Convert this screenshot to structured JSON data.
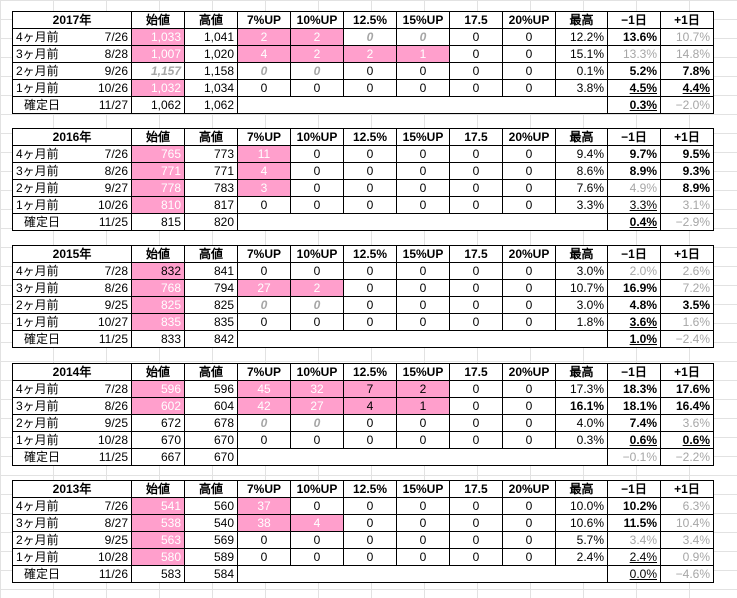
{
  "headers": [
    "始値",
    "高値",
    "7%UP",
    "10%UP",
    "12.5%",
    "15%UP",
    "17.5",
    "20%UP",
    "最高",
    "−1日",
    "+1日"
  ],
  "blocks": [
    {
      "year": "2017年",
      "rows": [
        {
          "label": "4ヶ月前",
          "date": "7/26",
          "open": "1,033",
          "high": "1,041",
          "u7": "2",
          "u10": "2",
          "u125": "0",
          "u15": "0",
          "u175": "0",
          "u20": "0",
          "max": "12.2%",
          "m1": "13.6%",
          "p1": "10.7%",
          "s": {
            "open": "pink",
            "u7": "pink",
            "u10": "pink",
            "u125": "zi",
            "u15": "zi",
            "m1": "bold",
            "p1": "gray"
          }
        },
        {
          "label": "3ヶ月前",
          "date": "8/28",
          "open": "1,007",
          "high": "1,020",
          "u7": "4",
          "u10": "2",
          "u125": "2",
          "u15": "1",
          "u175": "0",
          "u20": "0",
          "max": "15.1%",
          "m1": "13.3%",
          "p1": "14.8%",
          "s": {
            "open": "pink",
            "u7": "pink",
            "u10": "pink",
            "u125": "pink",
            "u15": "pink",
            "m1": "gray",
            "p1": "gray"
          }
        },
        {
          "label": "2ヶ月前",
          "date": "9/26",
          "open": "1,157",
          "high": "1,158",
          "u7": "0",
          "u10": "0",
          "u125": "0",
          "u15": "0",
          "u175": "0",
          "u20": "0",
          "max": "0.1%",
          "m1": "5.2%",
          "p1": "7.8%",
          "s": {
            "open": "zi",
            "u7": "zi",
            "u10": "zi",
            "m1": "bold",
            "p1": "bold"
          }
        },
        {
          "label": "1ヶ月前",
          "date": "10/26",
          "open": "1,032",
          "high": "1,034",
          "u7": "0",
          "u10": "0",
          "u125": "0",
          "u15": "0",
          "u175": "0",
          "u20": "0",
          "max": "3.8%",
          "m1": "4.5%",
          "p1": "4.4%",
          "s": {
            "open": "pink",
            "m1": "boldul",
            "p1": "boldul"
          }
        }
      ],
      "final": {
        "label": "確定日",
        "date": "11/27",
        "open": "1,062",
        "high": "1,062",
        "m1": "0.3%",
        "p1": "−2.0%",
        "s": {
          "m1": "boldul",
          "p1": "gray"
        }
      }
    },
    {
      "year": "2016年",
      "rows": [
        {
          "label": "4ヶ月前",
          "date": "7/26",
          "open": "765",
          "high": "773",
          "u7": "11",
          "u10": "0",
          "u125": "0",
          "u15": "0",
          "u175": "0",
          "u20": "0",
          "max": "9.4%",
          "m1": "9.7%",
          "p1": "9.5%",
          "s": {
            "open": "pink",
            "u7": "pink",
            "m1": "bold",
            "p1": "bold"
          }
        },
        {
          "label": "3ヶ月前",
          "date": "8/26",
          "open": "771",
          "high": "771",
          "u7": "4",
          "u10": "0",
          "u125": "0",
          "u15": "0",
          "u175": "0",
          "u20": "0",
          "max": "8.6%",
          "m1": "8.9%",
          "p1": "9.3%",
          "s": {
            "open": "pink",
            "u7": "pink",
            "m1": "bold",
            "p1": "bold"
          }
        },
        {
          "label": "2ヶ月前",
          "date": "9/27",
          "open": "778",
          "high": "783",
          "u7": "3",
          "u10": "0",
          "u125": "0",
          "u15": "0",
          "u175": "0",
          "u20": "0",
          "max": "7.6%",
          "m1": "4.9%",
          "p1": "8.9%",
          "s": {
            "open": "pink",
            "u7": "pink",
            "m1": "gray",
            "p1": "bold"
          }
        },
        {
          "label": "1ヶ月前",
          "date": "10/26",
          "open": "810",
          "high": "817",
          "u7": "0",
          "u10": "0",
          "u125": "0",
          "u15": "0",
          "u175": "0",
          "u20": "0",
          "max": "3.3%",
          "m1": "3.3%",
          "p1": "3.1%",
          "s": {
            "open": "pink",
            "m1": "ul",
            "p1": "gray"
          }
        }
      ],
      "final": {
        "label": "確定日",
        "date": "11/25",
        "open": "815",
        "high": "820",
        "m1": "0.4%",
        "p1": "−2.9%",
        "s": {
          "m1": "boldul",
          "p1": "gray"
        }
      }
    },
    {
      "year": "2015年",
      "rows": [
        {
          "label": "4ヶ月前",
          "date": "7/28",
          "open": "832",
          "high": "841",
          "u7": "0",
          "u10": "0",
          "u125": "0",
          "u15": "0",
          "u175": "0",
          "u20": "0",
          "max": "3.0%",
          "m1": "2.0%",
          "p1": "2.6%",
          "s": {
            "open": "pinkdark",
            "m1": "gray",
            "p1": "gray"
          }
        },
        {
          "label": "3ヶ月前",
          "date": "8/26",
          "open": "768",
          "high": "794",
          "u7": "27",
          "u10": "2",
          "u125": "0",
          "u15": "0",
          "u175": "0",
          "u20": "0",
          "max": "10.7%",
          "m1": "16.9%",
          "p1": "7.2%",
          "s": {
            "open": "pink",
            "u7": "pink",
            "u10": "pink",
            "m1": "bold",
            "p1": "gray"
          }
        },
        {
          "label": "2ヶ月前",
          "date": "9/25",
          "open": "825",
          "high": "825",
          "u7": "0",
          "u10": "0",
          "u125": "0",
          "u15": "0",
          "u175": "0",
          "u20": "0",
          "max": "3.0%",
          "m1": "4.8%",
          "p1": "3.5%",
          "s": {
            "open": "pink",
            "u7": "zi",
            "u10": "zi",
            "m1": "bold",
            "p1": "bold"
          }
        },
        {
          "label": "1ヶ月前",
          "date": "10/27",
          "open": "835",
          "high": "835",
          "u7": "0",
          "u10": "0",
          "u125": "0",
          "u15": "0",
          "u175": "0",
          "u20": "0",
          "max": "1.8%",
          "m1": "3.6%",
          "p1": "1.6%",
          "s": {
            "open": "pink",
            "m1": "boldul",
            "p1": "gray"
          }
        }
      ],
      "final": {
        "label": "確定日",
        "date": "11/25",
        "open": "833",
        "high": "842",
        "m1": "1.0%",
        "p1": "−2.4%",
        "s": {
          "m1": "boldul",
          "p1": "gray"
        }
      }
    },
    {
      "year": "2014年",
      "rows": [
        {
          "label": "4ヶ月前",
          "date": "7/28",
          "open": "596",
          "high": "596",
          "u7": "45",
          "u10": "32",
          "u125": "7",
          "u15": "2",
          "u175": "0",
          "u20": "0",
          "max": "17.3%",
          "m1": "18.3%",
          "p1": "17.6%",
          "s": {
            "open": "pink",
            "u7": "pink",
            "u10": "pink",
            "u125": "pinkdark",
            "u15": "pinkdark",
            "m1": "bold",
            "p1": "bold"
          }
        },
        {
          "label": "3ヶ月前",
          "date": "8/26",
          "open": "602",
          "high": "604",
          "u7": "42",
          "u10": "27",
          "u125": "4",
          "u15": "1",
          "u175": "0",
          "u20": "0",
          "max": "16.1%",
          "m1": "18.1%",
          "p1": "16.4%",
          "s": {
            "open": "pink",
            "u7": "pink",
            "u10": "pink",
            "u125": "pinkdark",
            "u15": "pinkdark",
            "max": "bold",
            "m1": "bold",
            "p1": "bold"
          }
        },
        {
          "label": "2ヶ月前",
          "date": "9/25",
          "open": "672",
          "high": "678",
          "u7": "0",
          "u10": "0",
          "u125": "0",
          "u15": "0",
          "u175": "0",
          "u20": "0",
          "max": "4.0%",
          "m1": "7.4%",
          "p1": "3.6%",
          "s": {
            "u7": "zi",
            "u10": "zi",
            "m1": "bold",
            "p1": "gray"
          }
        },
        {
          "label": "1ヶ月前",
          "date": "10/28",
          "open": "670",
          "high": "670",
          "u7": "0",
          "u10": "0",
          "u125": "0",
          "u15": "0",
          "u175": "0",
          "u20": "0",
          "max": "0.3%",
          "m1": "0.6%",
          "p1": "0.6%",
          "s": {
            "m1": "boldul",
            "p1": "boldul"
          }
        }
      ],
      "final": {
        "label": "確定日",
        "date": "11/25",
        "open": "667",
        "high": "670",
        "m1": "−0.1%",
        "p1": "−2.2%",
        "s": {
          "m1": "gray",
          "p1": "gray"
        }
      }
    },
    {
      "year": "2013年",
      "rows": [
        {
          "label": "4ヶ月前",
          "date": "7/26",
          "open": "541",
          "high": "560",
          "u7": "37",
          "u10": "0",
          "u125": "0",
          "u15": "0",
          "u175": "0",
          "u20": "0",
          "max": "10.0%",
          "m1": "10.2%",
          "p1": "6.3%",
          "s": {
            "open": "pink",
            "u7": "pink",
            "m1": "bold",
            "p1": "gray"
          }
        },
        {
          "label": "3ヶ月前",
          "date": "8/27",
          "open": "538",
          "high": "540",
          "u7": "38",
          "u10": "4",
          "u125": "0",
          "u15": "0",
          "u175": "0",
          "u20": "0",
          "max": "10.6%",
          "m1": "11.5%",
          "p1": "10.4%",
          "s": {
            "open": "pink",
            "u7": "pink",
            "u10": "pink",
            "m1": "bold",
            "p1": "gray"
          }
        },
        {
          "label": "2ヶ月前",
          "date": "9/25",
          "open": "563",
          "high": "569",
          "u7": "0",
          "u10": "0",
          "u125": "0",
          "u15": "0",
          "u175": "0",
          "u20": "0",
          "max": "5.7%",
          "m1": "3.4%",
          "p1": "3.4%",
          "s": {
            "open": "pink",
            "m1": "gray",
            "p1": "gray"
          }
        },
        {
          "label": "1ヶ月前",
          "date": "10/28",
          "open": "580",
          "high": "589",
          "u7": "0",
          "u10": "0",
          "u125": "0",
          "u15": "0",
          "u175": "0",
          "u20": "0",
          "max": "2.4%",
          "m1": "2.4%",
          "p1": "0.9%",
          "s": {
            "open": "pink",
            "m1": "ul",
            "p1": "gray"
          }
        }
      ],
      "final": {
        "label": "確定日",
        "date": "11/26",
        "open": "583",
        "high": "584",
        "m1": "0.0%",
        "p1": "−4.6%",
        "s": {
          "m1": "ul",
          "p1": "gray"
        }
      }
    }
  ]
}
